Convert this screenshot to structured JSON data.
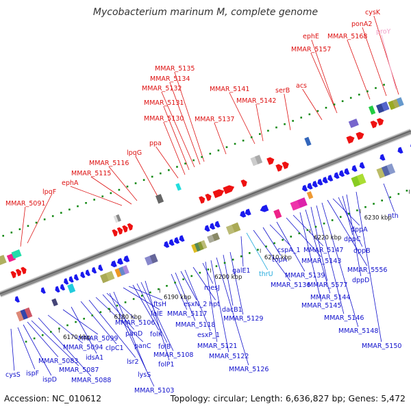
{
  "title": "Mycobacterium marinum M, complete genome",
  "accession": "Accession: NC_010612",
  "topology": "Topology: circular; Length: 6,636,827 bp; Genes: 5,472",
  "colors": {
    "forward_label": "#dd1111",
    "reverse_label": "#1111cc",
    "rna_label": "#f0a0c8",
    "highlight_label": "#22aadd",
    "backbone": "#8a8a8a",
    "tick": "#118811"
  },
  "kbp_ticks": [
    "6170 kbp",
    "6180 kbp",
    "6190 kbp",
    "6200 kbp",
    "6210 kbp",
    "6220 kbp",
    "6230 kbp",
    "6240 kbp",
    "6250 kbp"
  ],
  "forward_genes": [
    "MMAR_5091",
    "lpqF",
    "ephA",
    "MMAR_5115",
    "MMAR_5116",
    "lpqG",
    "ppa",
    "MMAR_5130",
    "MMAR_5131",
    "MMAR_5132",
    "MMAR_5134",
    "MMAR_5135",
    "MMAR_5137",
    "MMAR_5141",
    "MMAR_5142",
    "serB",
    "acs",
    "ephE",
    "MMAR_5157",
    "MMAR_5168",
    "ponA2",
    "cysK"
  ],
  "rna_genes": [
    "proY"
  ],
  "reverse_genes": [
    "cysS",
    "ispF",
    "ispD",
    "MMAR_5083",
    "MMAR_5087",
    "MMAR_5088",
    "MMAR_5094",
    "MMAR_5099",
    "idsA1",
    "clpC1",
    "lsr2",
    "panC",
    "panD",
    "MMAR_5103",
    "lysS",
    "MMAR_5106",
    "folE",
    "ftsH",
    "folK",
    "folB",
    "MMAR_5108",
    "folP1",
    "MMAR_5117",
    "MMAR_5118",
    "esxN_2",
    "esxP_1",
    "hpt",
    "mesJ",
    "MMAR_5121",
    "MMAR_5122",
    "MMAR_5126",
    "dacB1",
    "MMAR_5129",
    "galE1",
    "thrU",
    "MMAR_5136",
    "topA",
    "cspA_1",
    "MMAR_5139",
    "MMAR_5143",
    "MMAR_5147",
    "MMAR_5145",
    "MMAR_5144",
    "MMAR_5577",
    "MMAR_5146",
    "MMAR_5148",
    "MMAR_5556",
    "dppA",
    "dppB",
    "dppC",
    "dppD",
    "MMAR_5150",
    "nth"
  ]
}
